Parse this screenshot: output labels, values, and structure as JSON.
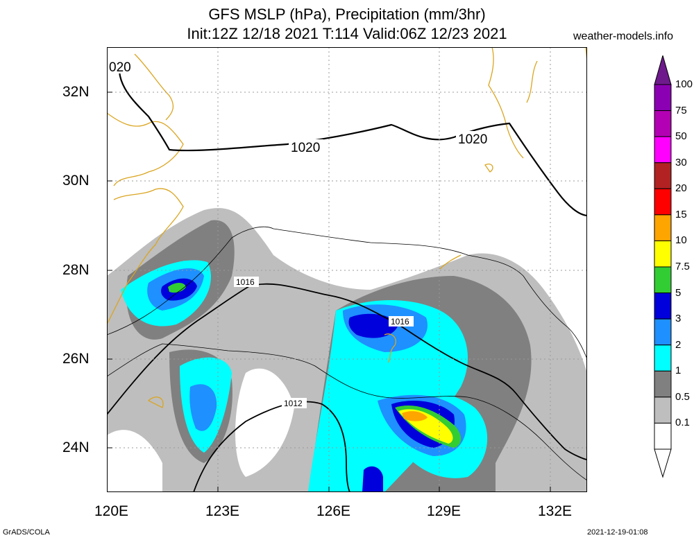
{
  "header": {
    "title_line1": "GFS MSLP (hPa), Precipitation (mm/3hr)",
    "title_line2": "Init:12Z 12/18 2021 T:114 Valid:06Z 12/23 2021",
    "site": "weather-models.info"
  },
  "axes": {
    "lat_labels": [
      "32N",
      "30N",
      "28N",
      "26N",
      "24N"
    ],
    "lon_labels": [
      "120E",
      "123E",
      "126E",
      "129E",
      "132E"
    ]
  },
  "isobars": {
    "labels": [
      "1020",
      "1020",
      "020",
      "1016",
      "1016",
      "1012"
    ]
  },
  "colorbar": {
    "levels": [
      "100",
      "75",
      "50",
      "30",
      "20",
      "15",
      "10",
      "7.5",
      "5",
      "3",
      "2",
      "1",
      "0.5",
      "0.1"
    ],
    "colors": [
      "#8c00b4",
      "#b400b4",
      "#ff00ff",
      "#b22222",
      "#ff0000",
      "#ffa500",
      "#ffff00",
      "#32cd32",
      "#0000dc",
      "#1e90ff",
      "#00ffff",
      "#808080",
      "#bebebe",
      "#ffffff"
    ]
  },
  "footer": {
    "credit": "GrADS/COLA",
    "timestamp": "2021-12-19-01:08"
  }
}
